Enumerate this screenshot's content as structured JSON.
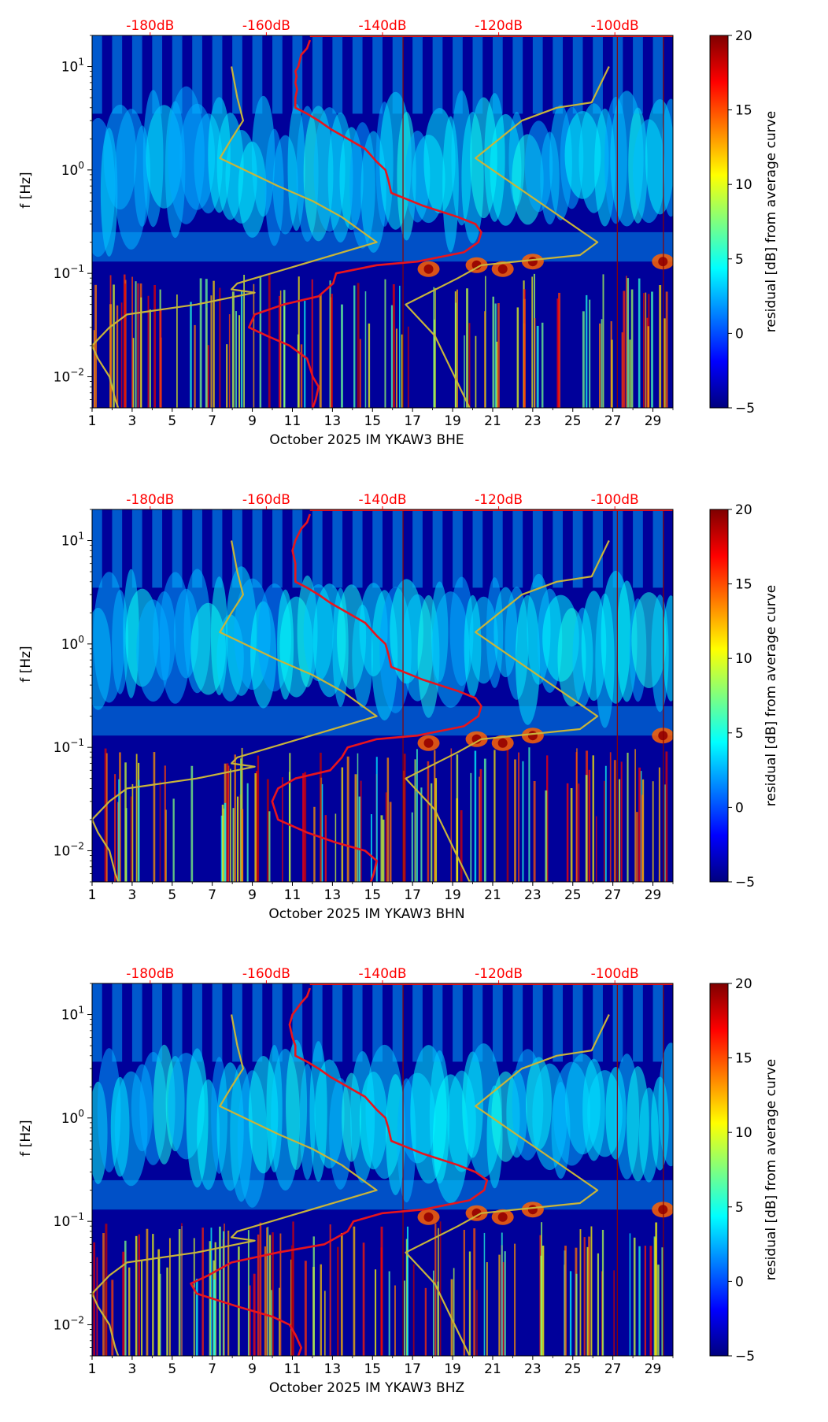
{
  "colors": {
    "colormap": [
      "#00007f",
      "#0000ff",
      "#007fff",
      "#00ffff",
      "#7fff7f",
      "#ffff00",
      "#ff7f00",
      "#ff0000",
      "#7f0000"
    ],
    "top_axis_text": "#ff0000",
    "red_curve": "#e8141c",
    "yellow_curve": "#c8b43a"
  },
  "chart_data": [
    {
      "type": "heatmap",
      "ylabel": "f [Hz]",
      "xlabel": "October 2025 IM YKAW3  BHE",
      "x_ticks": [
        "1",
        "3",
        "5",
        "7",
        "9",
        "11",
        "13",
        "15",
        "17",
        "19",
        "21",
        "23",
        "25",
        "27",
        "29"
      ],
      "xlim": [
        1,
        30
      ],
      "y_scale": "log",
      "ylim": [
        0.005,
        20
      ],
      "y_ticks": [
        "10",
        "10",
        "10"
      ],
      "y_tick_exponents": [
        "1",
        "0",
        "−2"
      ],
      "y_tick_values": [
        10,
        1,
        0.01
      ],
      "y_tick_exponent_extra": "−1",
      "y_tick_extra_value": 0.1,
      "top_axis_ticks": [
        "-180dB",
        "-160dB",
        "-140dB",
        "-120dB",
        "-100dB"
      ],
      "top_axis_values": [
        -180,
        -160,
        -140,
        -120,
        -100
      ],
      "colorbar": {
        "label": "residual [dB] from average curve",
        "ticks": [
          "20",
          "15",
          "10",
          "5",
          "0",
          "−5"
        ],
        "range": [
          -5,
          20
        ]
      },
      "series": [
        {
          "color": "red",
          "points": [
            [
              -152.5,
              18
            ],
            [
              -153,
              15
            ],
            [
              -154,
              13
            ],
            [
              -154.5,
              10
            ],
            [
              -155,
              9
            ],
            [
              -154.8,
              8
            ],
            [
              -155,
              7
            ],
            [
              -154.7,
              6
            ],
            [
              -155,
              5
            ],
            [
              -155,
              4
            ],
            [
              -153,
              3.5
            ],
            [
              -151,
              3
            ],
            [
              -149,
              2.5
            ],
            [
              -146,
              2
            ],
            [
              -143,
              1.6
            ],
            [
              -141,
              1.2
            ],
            [
              -139.5,
              1.0
            ],
            [
              -139,
              0.8
            ],
            [
              -138.5,
              0.6
            ],
            [
              -133,
              0.45
            ],
            [
              -127,
              0.35
            ],
            [
              -124,
              0.3
            ],
            [
              -123,
              0.25
            ],
            [
              -123.5,
              0.2
            ],
            [
              -126,
              0.16
            ],
            [
              -134,
              0.13
            ],
            [
              -141,
              0.12
            ],
            [
              -148,
              0.1
            ],
            [
              -148.5,
              0.08
            ],
            [
              -151,
              0.06
            ],
            [
              -157,
              0.05
            ],
            [
              -162,
              0.04
            ],
            [
              -163,
              0.03
            ],
            [
              -160,
              0.025
            ],
            [
              -156,
              0.02
            ],
            [
              -153,
              0.015
            ],
            [
              -152,
              0.01
            ],
            [
              -151,
              0.008
            ],
            [
              -151.5,
              0.006
            ],
            [
              -152,
              0.005
            ]
          ]
        },
        {
          "color": "yellow",
          "points": [
            [
              -166,
              10
            ],
            [
              -165,
              5
            ],
            [
              -164,
              3
            ],
            [
              -166,
              2
            ],
            [
              -168,
              1.3
            ],
            [
              -158,
              0.7
            ],
            [
              -152,
              0.5
            ],
            [
              -147,
              0.35
            ],
            [
              -141,
              0.2
            ],
            [
              -165,
              0.08
            ],
            [
              -166,
              0.07
            ],
            [
              -162,
              0.065
            ],
            [
              -172,
              0.05
            ],
            [
              -184,
              0.04
            ],
            [
              -187,
              0.03
            ],
            [
              -190,
              0.02
            ],
            [
              -189,
              0.015
            ],
            [
              -187,
              0.01
            ],
            [
              -186,
              0.006
            ],
            [
              -185.5,
              0.005
            ]
          ]
        },
        {
          "color": "yellow",
          "points": [
            [
              -101,
              10
            ],
            [
              -104,
              4.5
            ],
            [
              -110,
              4
            ],
            [
              -116,
              3
            ],
            [
              -124,
              1.3
            ],
            [
              -103,
              0.2
            ],
            [
              -106,
              0.15
            ],
            [
              -123,
              0.12
            ],
            [
              -127,
              0.09
            ],
            [
              -136,
              0.05
            ],
            [
              -131,
              0.025
            ],
            [
              -125,
              0.005
            ]
          ]
        }
      ]
    },
    {
      "type": "heatmap",
      "ylabel": "f [Hz]",
      "xlabel": "October 2025 IM YKAW3  BHN",
      "x_ticks": [
        "1",
        "3",
        "5",
        "7",
        "9",
        "11",
        "13",
        "15",
        "17",
        "19",
        "21",
        "23",
        "25",
        "27",
        "29"
      ],
      "xlim": [
        1,
        30
      ],
      "y_scale": "log",
      "ylim": [
        0.005,
        20
      ],
      "y_ticks": [
        "10",
        "10",
        "10"
      ],
      "y_tick_exponents": [
        "1",
        "0",
        "−2"
      ],
      "y_tick_values": [
        10,
        1,
        0.01
      ],
      "y_tick_exponent_extra": "−1",
      "y_tick_extra_value": 0.1,
      "top_axis_ticks": [
        "-180dB",
        "-160dB",
        "-140dB",
        "-120dB",
        "-100dB"
      ],
      "top_axis_values": [
        -180,
        -160,
        -140,
        -120,
        -100
      ],
      "colorbar": {
        "label": "residual [dB] from average curve",
        "ticks": [
          "20",
          "15",
          "10",
          "5",
          "0",
          "−5"
        ],
        "range": [
          -5,
          20
        ]
      },
      "series": [
        {
          "color": "red",
          "points": [
            [
              -152.5,
              18
            ],
            [
              -153,
              15
            ],
            [
              -154,
              13
            ],
            [
              -155,
              10
            ],
            [
              -155.5,
              8
            ],
            [
              -155,
              6
            ],
            [
              -155,
              5
            ],
            [
              -155,
              4
            ],
            [
              -153,
              3.5
            ],
            [
              -151,
              3
            ],
            [
              -149,
              2.5
            ],
            [
              -146,
              2
            ],
            [
              -143,
              1.6
            ],
            [
              -141,
              1.2
            ],
            [
              -139.5,
              1.0
            ],
            [
              -139,
              0.8
            ],
            [
              -138.5,
              0.6
            ],
            [
              -133,
              0.45
            ],
            [
              -127,
              0.35
            ],
            [
              -124,
              0.3
            ],
            [
              -123,
              0.25
            ],
            [
              -123.5,
              0.2
            ],
            [
              -126,
              0.16
            ],
            [
              -134,
              0.13
            ],
            [
              -141,
              0.12
            ],
            [
              -146,
              0.1
            ],
            [
              -147,
              0.08
            ],
            [
              -149,
              0.06
            ],
            [
              -155,
              0.05
            ],
            [
              -158,
              0.04
            ],
            [
              -159,
              0.03
            ],
            [
              -158,
              0.02
            ],
            [
              -153,
              0.015
            ],
            [
              -148,
              0.012
            ],
            [
              -143,
              0.01
            ],
            [
              -141,
              0.008
            ],
            [
              -141.5,
              0.006
            ],
            [
              -142,
              0.005
            ]
          ]
        },
        {
          "color": "yellow",
          "points": [
            [
              -166,
              10
            ],
            [
              -165,
              5
            ],
            [
              -164,
              3
            ],
            [
              -166,
              2
            ],
            [
              -168,
              1.3
            ],
            [
              -158,
              0.7
            ],
            [
              -152,
              0.5
            ],
            [
              -147,
              0.35
            ],
            [
              -141,
              0.2
            ],
            [
              -165,
              0.08
            ],
            [
              -166,
              0.07
            ],
            [
              -162,
              0.065
            ],
            [
              -172,
              0.05
            ],
            [
              -184,
              0.04
            ],
            [
              -187,
              0.03
            ],
            [
              -190,
              0.02
            ],
            [
              -189,
              0.015
            ],
            [
              -187,
              0.01
            ],
            [
              -186,
              0.006
            ],
            [
              -185.5,
              0.005
            ]
          ]
        },
        {
          "color": "yellow",
          "points": [
            [
              -101,
              10
            ],
            [
              -104,
              4.5
            ],
            [
              -110,
              4
            ],
            [
              -116,
              3
            ],
            [
              -124,
              1.3
            ],
            [
              -103,
              0.2
            ],
            [
              -106,
              0.15
            ],
            [
              -123,
              0.12
            ],
            [
              -127,
              0.09
            ],
            [
              -136,
              0.05
            ],
            [
              -131,
              0.025
            ],
            [
              -125,
              0.005
            ]
          ]
        }
      ]
    },
    {
      "type": "heatmap",
      "ylabel": "f [Hz]",
      "xlabel": "October 2025 IM YKAW3  BHZ",
      "x_ticks": [
        "1",
        "3",
        "5",
        "7",
        "9",
        "11",
        "13",
        "15",
        "17",
        "19",
        "21",
        "23",
        "25",
        "27",
        "29"
      ],
      "xlim": [
        1,
        30
      ],
      "y_scale": "log",
      "ylim": [
        0.005,
        20
      ],
      "y_ticks": [
        "10",
        "10",
        "10"
      ],
      "y_tick_exponents": [
        "1",
        "0",
        "−2"
      ],
      "y_tick_values": [
        10,
        1,
        0.01
      ],
      "y_tick_exponent_extra": "−1",
      "y_tick_extra_value": 0.1,
      "top_axis_ticks": [
        "-180dB",
        "-160dB",
        "-140dB",
        "-120dB",
        "-100dB"
      ],
      "top_axis_values": [
        -180,
        -160,
        -140,
        -120,
        -100
      ],
      "colorbar": {
        "label": "residual [dB] from average curve",
        "ticks": [
          "20",
          "15",
          "10",
          "5",
          "0",
          "−5"
        ],
        "range": [
          -5,
          20
        ]
      },
      "series": [
        {
          "color": "red",
          "points": [
            [
              -152.5,
              18
            ],
            [
              -153,
              15
            ],
            [
              -154,
              13
            ],
            [
              -155.5,
              10
            ],
            [
              -156,
              8
            ],
            [
              -155.5,
              6
            ],
            [
              -155,
              5
            ],
            [
              -155,
              4
            ],
            [
              -153,
              3.5
            ],
            [
              -151,
              3
            ],
            [
              -149,
              2.5
            ],
            [
              -146,
              2
            ],
            [
              -143,
              1.6
            ],
            [
              -141,
              1.2
            ],
            [
              -139.5,
              1.0
            ],
            [
              -139,
              0.8
            ],
            [
              -138.5,
              0.6
            ],
            [
              -133,
              0.45
            ],
            [
              -127,
              0.35
            ],
            [
              -124,
              0.3
            ],
            [
              -122,
              0.25
            ],
            [
              -122.5,
              0.2
            ],
            [
              -125,
              0.16
            ],
            [
              -133,
              0.13
            ],
            [
              -140,
              0.12
            ],
            [
              -145,
              0.1
            ],
            [
              -146,
              0.08
            ],
            [
              -150,
              0.06
            ],
            [
              -158,
              0.05
            ],
            [
              -166,
              0.04
            ],
            [
              -170,
              0.03
            ],
            [
              -173,
              0.025
            ],
            [
              -172,
              0.02
            ],
            [
              -165,
              0.015
            ],
            [
              -159,
              0.012
            ],
            [
              -156,
              0.01
            ],
            [
              -155,
              0.008
            ],
            [
              -154,
              0.006
            ],
            [
              -154.5,
              0.005
            ]
          ]
        },
        {
          "color": "yellow",
          "points": [
            [
              -166,
              10
            ],
            [
              -165,
              5
            ],
            [
              -164,
              3
            ],
            [
              -166,
              2
            ],
            [
              -168,
              1.3
            ],
            [
              -158,
              0.7
            ],
            [
              -152,
              0.5
            ],
            [
              -147,
              0.35
            ],
            [
              -141,
              0.2
            ],
            [
              -165,
              0.08
            ],
            [
              -166,
              0.07
            ],
            [
              -162,
              0.065
            ],
            [
              -172,
              0.05
            ],
            [
              -184,
              0.04
            ],
            [
              -187,
              0.03
            ],
            [
              -190,
              0.02
            ],
            [
              -189,
              0.015
            ],
            [
              -187,
              0.01
            ],
            [
              -186,
              0.006
            ],
            [
              -185.5,
              0.005
            ]
          ]
        },
        {
          "color": "yellow",
          "points": [
            [
              -101,
              10
            ],
            [
              -104,
              4.5
            ],
            [
              -110,
              4
            ],
            [
              -116,
              3
            ],
            [
              -124,
              1.3
            ],
            [
              -103,
              0.2
            ],
            [
              -106,
              0.15
            ],
            [
              -123,
              0.12
            ],
            [
              -127,
              0.09
            ],
            [
              -136,
              0.05
            ],
            [
              -131,
              0.025
            ],
            [
              -125,
              0.005
            ]
          ]
        }
      ]
    }
  ]
}
